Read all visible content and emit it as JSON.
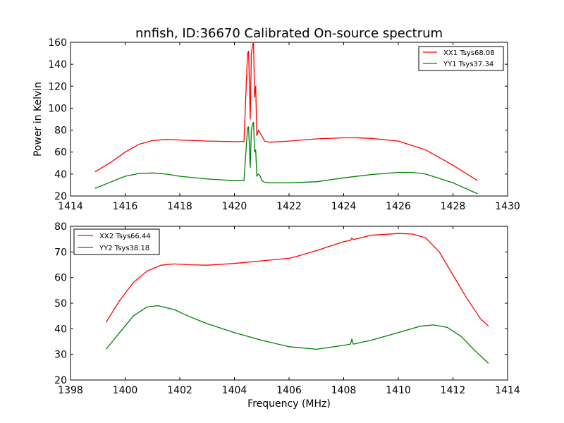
{
  "figure": {
    "title": "nnfish, ID:36670 Calibrated On-source spectrum",
    "line_colors": {
      "red": "#ff0000",
      "green": "#008000"
    }
  },
  "chart_data": [
    {
      "type": "line",
      "title": "nnfish, ID:36670 Calibrated On-source spectrum",
      "xlabel": "",
      "ylabel": "Power in Kelvin",
      "xlim": [
        1414,
        1430
      ],
      "ylim": [
        20,
        160
      ],
      "xticks": [
        "1414",
        "1416",
        "1418",
        "1420",
        "1422",
        "1424",
        "1426",
        "1428",
        "1430"
      ],
      "yticks": [
        "20",
        "40",
        "60",
        "80",
        "100",
        "120",
        "140",
        "160"
      ],
      "grid": false,
      "legend_position": "upper right",
      "series": [
        {
          "name": "XX1 Tsys68.08",
          "color": "#ff0000",
          "x": [
            1414.9,
            1415.5,
            1416.0,
            1416.5,
            1417.0,
            1417.5,
            1418.0,
            1419.0,
            1420.0,
            1420.35,
            1420.48,
            1420.52,
            1420.58,
            1420.62,
            1420.67,
            1420.7,
            1420.74,
            1420.78,
            1420.82,
            1420.88,
            1420.95,
            1421.0,
            1421.1,
            1421.3,
            1422.0,
            1423.0,
            1424.0,
            1424.5,
            1425.0,
            1426.0,
            1427.0,
            1428.0,
            1428.9
          ],
          "y": [
            42,
            51,
            60,
            67,
            70.5,
            71.5,
            71,
            70,
            69.5,
            69.5,
            150,
            152,
            90,
            150,
            158,
            160,
            110,
            120,
            75,
            80,
            77,
            75,
            70,
            69,
            70,
            72,
            73,
            73,
            72.5,
            70,
            62,
            48,
            34
          ]
        },
        {
          "name": "YY1 Tsys37.34",
          "color": "#008000",
          "x": [
            1414.9,
            1415.5,
            1416.0,
            1416.5,
            1417.0,
            1417.5,
            1418.0,
            1419.0,
            1420.0,
            1420.35,
            1420.48,
            1420.52,
            1420.58,
            1420.62,
            1420.67,
            1420.7,
            1420.74,
            1420.78,
            1420.82,
            1420.88,
            1420.95,
            1421.0,
            1421.1,
            1421.3,
            1422.0,
            1423.0,
            1424.0,
            1425.0,
            1426.0,
            1426.5,
            1427.0,
            1428.0,
            1428.9
          ],
          "y": [
            27,
            33,
            38,
            40.5,
            41,
            40,
            38,
            35.5,
            34,
            34,
            82,
            83,
            46,
            80,
            86,
            87,
            60,
            62,
            38,
            40,
            38,
            34,
            32.5,
            32,
            32,
            33,
            36.5,
            39.5,
            41.5,
            41.5,
            40,
            32,
            22
          ]
        }
      ]
    },
    {
      "type": "line",
      "title": "",
      "xlabel": "Frequency (MHz)",
      "ylabel": "",
      "xlim": [
        1398,
        1414
      ],
      "ylim": [
        20,
        80
      ],
      "xticks": [
        "1398",
        "1400",
        "1402",
        "1404",
        "1406",
        "1408",
        "1410",
        "1412",
        "1414"
      ],
      "yticks": [
        "20",
        "30",
        "40",
        "50",
        "60",
        "70",
        "80"
      ],
      "grid": false,
      "legend_position": "upper left",
      "series": [
        {
          "name": "XX2 Tsys66.44",
          "color": "#ff0000",
          "x": [
            1399.3,
            1399.8,
            1400.3,
            1400.8,
            1401.3,
            1401.8,
            1402.3,
            1403.0,
            1404.0,
            1405.0,
            1406.0,
            1406.3,
            1407.0,
            1408.0,
            1408.25,
            1408.3,
            1408.35,
            1409.0,
            1410.0,
            1410.5,
            1411.0,
            1411.5,
            1412.0,
            1412.5,
            1413.0,
            1413.3
          ],
          "y": [
            42.5,
            51,
            58,
            62.5,
            64.8,
            65.3,
            65,
            64.8,
            65.5,
            66.5,
            67.5,
            68.3,
            70.5,
            74,
            74.5,
            75.5,
            74.8,
            76.5,
            77.2,
            77,
            75.5,
            70,
            61,
            52,
            44,
            41
          ]
        },
        {
          "name": "YY2 Tsys38.18",
          "color": "#008000",
          "x": [
            1399.3,
            1399.8,
            1400.3,
            1400.8,
            1401.2,
            1401.8,
            1402.3,
            1403.0,
            1404.0,
            1405.0,
            1406.0,
            1407.0,
            1408.0,
            1408.25,
            1408.3,
            1408.35,
            1409.0,
            1410.0,
            1410.8,
            1411.3,
            1411.8,
            1412.3,
            1412.8,
            1413.3
          ],
          "y": [
            32,
            38.5,
            45,
            48.5,
            49,
            47.5,
            45,
            42,
            38.5,
            35.5,
            33,
            32,
            33.5,
            34,
            36,
            34,
            35.5,
            38.5,
            41,
            41.5,
            40.5,
            37,
            31.5,
            26.5
          ]
        }
      ]
    }
  ]
}
